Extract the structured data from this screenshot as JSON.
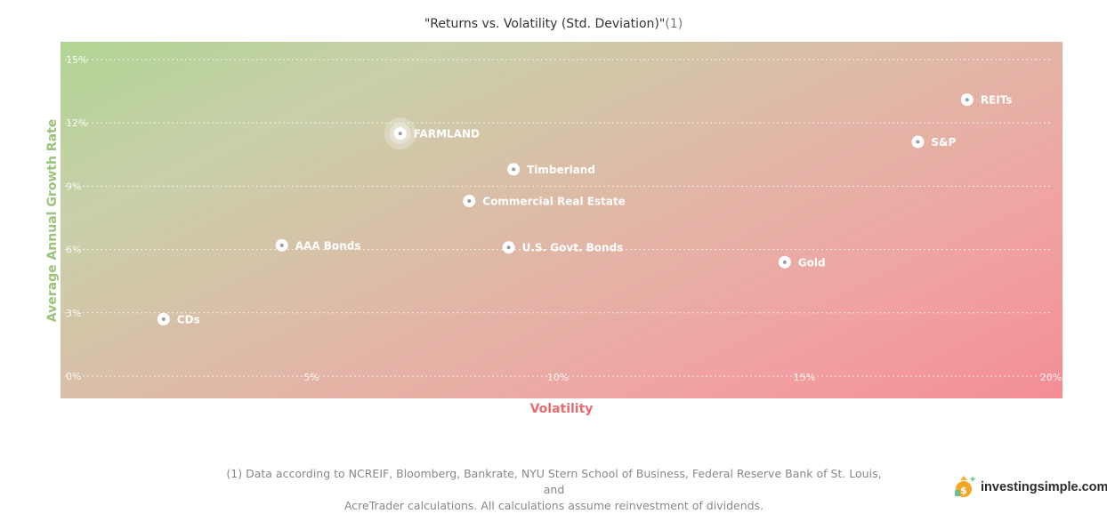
{
  "chart_data": {
    "type": "scatter",
    "title": "\"Returns vs. Volatility (Std. Deviation)\"",
    "title_note": "(1)",
    "xlabel": "Volatility",
    "ylabel": "Average Annual Growth Rate",
    "xlim": [
      0,
      20
    ],
    "ylim": [
      0,
      15
    ],
    "x_ticks": [
      "5%",
      "10%",
      "15%",
      "20%"
    ],
    "y_ticks": [
      "0%",
      "3%",
      "6%",
      "9%",
      "12%",
      "15%"
    ],
    "grid": "horizontal dotted",
    "colors": {
      "low_risk": "#b1d493",
      "high_risk": "#f28e94",
      "marker": "#ffffff",
      "xlabel": "#e96a70",
      "ylabel": "#9ac47a"
    },
    "points": [
      {
        "label": "CDs",
        "x": 2.0,
        "y": 2.7
      },
      {
        "label": "AAA Bonds",
        "x": 4.4,
        "y": 6.2
      },
      {
        "label": "FARMLAND",
        "x": 6.8,
        "y": 11.5,
        "highlight": true
      },
      {
        "label": "Commercial Real Estate",
        "x": 8.2,
        "y": 8.3
      },
      {
        "label": "Timberland",
        "x": 9.1,
        "y": 9.8
      },
      {
        "label": "U.S. Govt. Bonds",
        "x": 9.0,
        "y": 6.1
      },
      {
        "label": "Gold",
        "x": 14.6,
        "y": 5.4
      },
      {
        "label": "S&P",
        "x": 17.3,
        "y": 11.1
      },
      {
        "label": "REITs",
        "x": 18.3,
        "y": 13.1
      }
    ]
  },
  "footnote": {
    "line1": "(1) Data according to NCREIF, Bloomberg, Bankrate, NYU Stern School of Business, Federal Reserve Bank of St. Louis, and",
    "line2": "AcreTrader calculations. All calculations assume reinvestment of dividends."
  },
  "logo": {
    "text": "investingsimple.com",
    "icon": "money-bag-icon"
  }
}
